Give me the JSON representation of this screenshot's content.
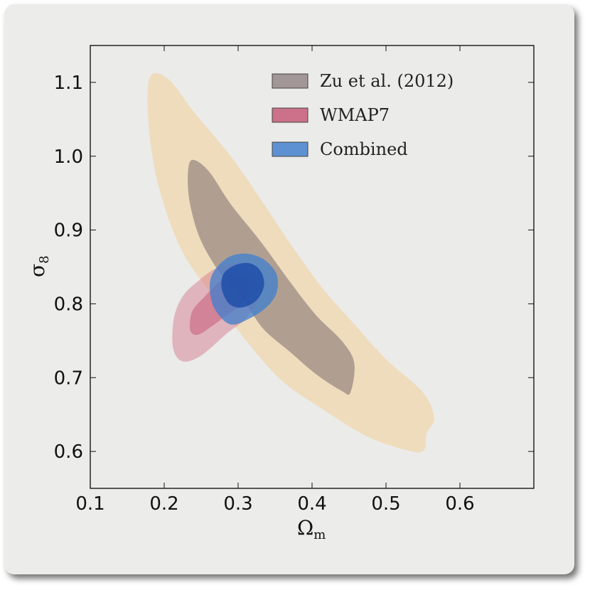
{
  "chart_data": {
    "type": "contour",
    "xlabel": "Ω",
    "xlabel_sub": "m",
    "ylabel": "σ",
    "ylabel_sub": "8",
    "xlim": [
      0.1,
      0.7
    ],
    "ylim": [
      0.55,
      1.15
    ],
    "xticks": [
      "0.1",
      "0.2",
      "0.3",
      "0.4",
      "0.5",
      "0.6"
    ],
    "yticks": [
      "0.6",
      "0.7",
      "0.8",
      "0.9",
      "1.0",
      "1.1"
    ],
    "legend_position": "top-right",
    "legend": [
      {
        "label": "Zu et al. (2012)",
        "color": "#8a7a7a"
      },
      {
        "label": "WMAP7",
        "color": "#c24868"
      },
      {
        "label": "Combined",
        "color": "#2f73c8"
      }
    ],
    "series": [
      {
        "name": "Zu et al. (2012)",
        "level": "outer",
        "color": "#f0d7ae",
        "opacity": 0.75,
        "contour": [
          [
            0.18,
            1.105
          ],
          [
            0.205,
            1.105
          ],
          [
            0.24,
            1.06
          ],
          [
            0.29,
            1.0
          ],
          [
            0.335,
            0.935
          ],
          [
            0.375,
            0.875
          ],
          [
            0.415,
            0.82
          ],
          [
            0.455,
            0.775
          ],
          [
            0.5,
            0.725
          ],
          [
            0.55,
            0.68
          ],
          [
            0.565,
            0.645
          ],
          [
            0.555,
            0.625
          ],
          [
            0.552,
            0.603
          ],
          [
            0.535,
            0.6
          ],
          [
            0.475,
            0.62
          ],
          [
            0.41,
            0.66
          ],
          [
            0.36,
            0.695
          ],
          [
            0.315,
            0.745
          ],
          [
            0.27,
            0.805
          ],
          [
            0.225,
            0.87
          ],
          [
            0.195,
            0.95
          ],
          [
            0.18,
            1.03
          ]
        ]
      },
      {
        "name": "Zu et al. (2012)",
        "level": "inner",
        "color": "#7c6e6e",
        "opacity": 0.55,
        "contour": [
          [
            0.238,
            0.995
          ],
          [
            0.26,
            0.98
          ],
          [
            0.29,
            0.935
          ],
          [
            0.33,
            0.885
          ],
          [
            0.37,
            0.83
          ],
          [
            0.405,
            0.785
          ],
          [
            0.44,
            0.75
          ],
          [
            0.457,
            0.72
          ],
          [
            0.452,
            0.68
          ],
          [
            0.44,
            0.682
          ],
          [
            0.405,
            0.705
          ],
          [
            0.37,
            0.735
          ],
          [
            0.335,
            0.765
          ],
          [
            0.31,
            0.8
          ],
          [
            0.28,
            0.835
          ],
          [
            0.25,
            0.885
          ],
          [
            0.235,
            0.935
          ],
          [
            0.232,
            0.975
          ]
        ]
      },
      {
        "name": "WMAP7",
        "level": "outer",
        "color": "#d27087",
        "opacity": 0.45,
        "contour": [
          [
            0.32,
            0.85
          ],
          [
            0.335,
            0.835
          ],
          [
            0.33,
            0.81
          ],
          [
            0.31,
            0.78
          ],
          [
            0.285,
            0.76
          ],
          [
            0.25,
            0.73
          ],
          [
            0.225,
            0.722
          ],
          [
            0.212,
            0.74
          ],
          [
            0.213,
            0.78
          ],
          [
            0.225,
            0.81
          ],
          [
            0.245,
            0.83
          ],
          [
            0.27,
            0.848
          ],
          [
            0.3,
            0.855
          ]
        ]
      },
      {
        "name": "WMAP7",
        "level": "inner",
        "color": "#c24868",
        "opacity": 0.45,
        "contour": [
          [
            0.305,
            0.84
          ],
          [
            0.315,
            0.825
          ],
          [
            0.305,
            0.8
          ],
          [
            0.285,
            0.785
          ],
          [
            0.265,
            0.77
          ],
          [
            0.245,
            0.758
          ],
          [
            0.235,
            0.765
          ],
          [
            0.238,
            0.79
          ],
          [
            0.255,
            0.81
          ],
          [
            0.275,
            0.83
          ],
          [
            0.29,
            0.84
          ]
        ]
      },
      {
        "name": "Combined",
        "level": "outer",
        "color": "#3f7fd0",
        "opacity": 0.75,
        "contour": [
          [
            0.265,
            0.84
          ],
          [
            0.285,
            0.862
          ],
          [
            0.31,
            0.868
          ],
          [
            0.335,
            0.86
          ],
          [
            0.352,
            0.84
          ],
          [
            0.352,
            0.815
          ],
          [
            0.338,
            0.795
          ],
          [
            0.315,
            0.78
          ],
          [
            0.29,
            0.772
          ],
          [
            0.27,
            0.79
          ],
          [
            0.262,
            0.815
          ]
        ]
      },
      {
        "name": "Combined",
        "level": "inner",
        "color": "#1f4fa8",
        "opacity": 0.85,
        "contour": [
          [
            0.28,
            0.84
          ],
          [
            0.295,
            0.852
          ],
          [
            0.315,
            0.855
          ],
          [
            0.33,
            0.845
          ],
          [
            0.335,
            0.825
          ],
          [
            0.325,
            0.805
          ],
          [
            0.305,
            0.795
          ],
          [
            0.288,
            0.8
          ],
          [
            0.278,
            0.82
          ]
        ]
      }
    ]
  }
}
